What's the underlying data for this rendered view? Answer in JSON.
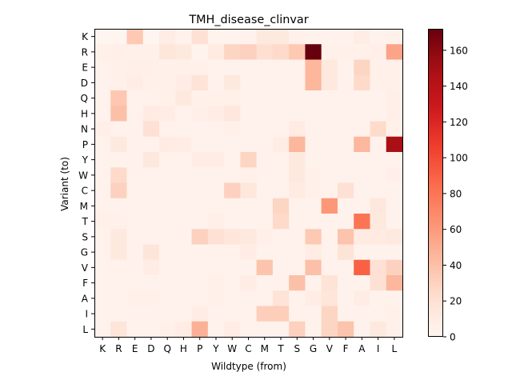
{
  "chart_data": {
    "type": "heatmap",
    "title": "TMH_disease_clinvar",
    "xlabel": "Wildtype (from)",
    "ylabel": "Variant (to)",
    "x_categories": [
      "K",
      "R",
      "E",
      "D",
      "Q",
      "H",
      "P",
      "Y",
      "W",
      "C",
      "M",
      "T",
      "S",
      "G",
      "V",
      "F",
      "A",
      "I",
      "L"
    ],
    "y_categories": [
      "K",
      "R",
      "E",
      "D",
      "Q",
      "H",
      "N",
      "P",
      "Y",
      "W",
      "C",
      "M",
      "T",
      "S",
      "G",
      "V",
      "F",
      "A",
      "I",
      "L"
    ],
    "values": [
      [
        0,
        0,
        35,
        0,
        8,
        3,
        20,
        2,
        2,
        3,
        12,
        12,
        5,
        3,
        3,
        3,
        8,
        3,
        4
      ],
      [
        4,
        6,
        5,
        4,
        15,
        12,
        2,
        10,
        28,
        30,
        22,
        25,
        35,
        172,
        4,
        4,
        4,
        6,
        55
      ],
      [
        3,
        4,
        6,
        6,
        4,
        4,
        4,
        3,
        3,
        3,
        3,
        3,
        3,
        45,
        12,
        3,
        28,
        4,
        4
      ],
      [
        3,
        4,
        8,
        4,
        4,
        8,
        18,
        3,
        12,
        3,
        3,
        3,
        3,
        45,
        12,
        3,
        25,
        4,
        4
      ],
      [
        3,
        36,
        3,
        3,
        4,
        12,
        4,
        4,
        4,
        3,
        3,
        3,
        3,
        3,
        3,
        3,
        3,
        3,
        6
      ],
      [
        3,
        40,
        3,
        10,
        8,
        3,
        6,
        8,
        14,
        3,
        3,
        3,
        3,
        3,
        3,
        3,
        3,
        3,
        6
      ],
      [
        6,
        3,
        3,
        20,
        3,
        3,
        3,
        3,
        5,
        3,
        3,
        3,
        10,
        3,
        3,
        3,
        3,
        24,
        4
      ],
      [
        3,
        12,
        3,
        3,
        10,
        8,
        3,
        3,
        3,
        3,
        3,
        8,
        45,
        3,
        3,
        3,
        45,
        3,
        148
      ],
      [
        3,
        3,
        3,
        14,
        3,
        3,
        8,
        8,
        3,
        28,
        3,
        3,
        12,
        3,
        3,
        3,
        3,
        3,
        3
      ],
      [
        3,
        25,
        3,
        3,
        3,
        3,
        3,
        3,
        3,
        5,
        3,
        3,
        12,
        5,
        3,
        3,
        3,
        3,
        6
      ],
      [
        3,
        30,
        3,
        3,
        3,
        3,
        3,
        3,
        30,
        14,
        3,
        3,
        10,
        5,
        3,
        20,
        3,
        3,
        3
      ],
      [
        3,
        3,
        3,
        3,
        3,
        3,
        3,
        3,
        3,
        3,
        3,
        28,
        3,
        3,
        62,
        3,
        3,
        14,
        3
      ],
      [
        5,
        5,
        3,
        3,
        3,
        3,
        3,
        6,
        3,
        3,
        3,
        25,
        3,
        3,
        3,
        3,
        80,
        12,
        3
      ],
      [
        3,
        12,
        3,
        3,
        3,
        3,
        30,
        20,
        15,
        12,
        6,
        3,
        3,
        35,
        3,
        38,
        10,
        10,
        12
      ],
      [
        3,
        12,
        3,
        16,
        3,
        3,
        3,
        3,
        3,
        8,
        3,
        3,
        3,
        8,
        3,
        18,
        3,
        3,
        3
      ],
      [
        3,
        3,
        3,
        8,
        3,
        3,
        3,
        3,
        3,
        3,
        38,
        3,
        3,
        40,
        3,
        3,
        90,
        20,
        30
      ],
      [
        3,
        3,
        3,
        3,
        3,
        3,
        3,
        5,
        3,
        8,
        3,
        3,
        40,
        3,
        18,
        3,
        3,
        20,
        45
      ],
      [
        3,
        3,
        4,
        4,
        3,
        3,
        3,
        5,
        3,
        3,
        3,
        18,
        3,
        8,
        15,
        3,
        8,
        3,
        3
      ],
      [
        3,
        3,
        3,
        3,
        3,
        3,
        8,
        3,
        3,
        3,
        32,
        32,
        3,
        3,
        28,
        3,
        3,
        3,
        5
      ],
      [
        3,
        16,
        3,
        3,
        5,
        8,
        48,
        3,
        8,
        3,
        3,
        3,
        30,
        3,
        28,
        38,
        3,
        12,
        5
      ]
    ],
    "colorbar": {
      "min": 0,
      "max": 172,
      "ticks": [
        0,
        20,
        40,
        60,
        80,
        100,
        120,
        140,
        160
      ],
      "colormap": "Reds"
    },
    "grid": false
  }
}
